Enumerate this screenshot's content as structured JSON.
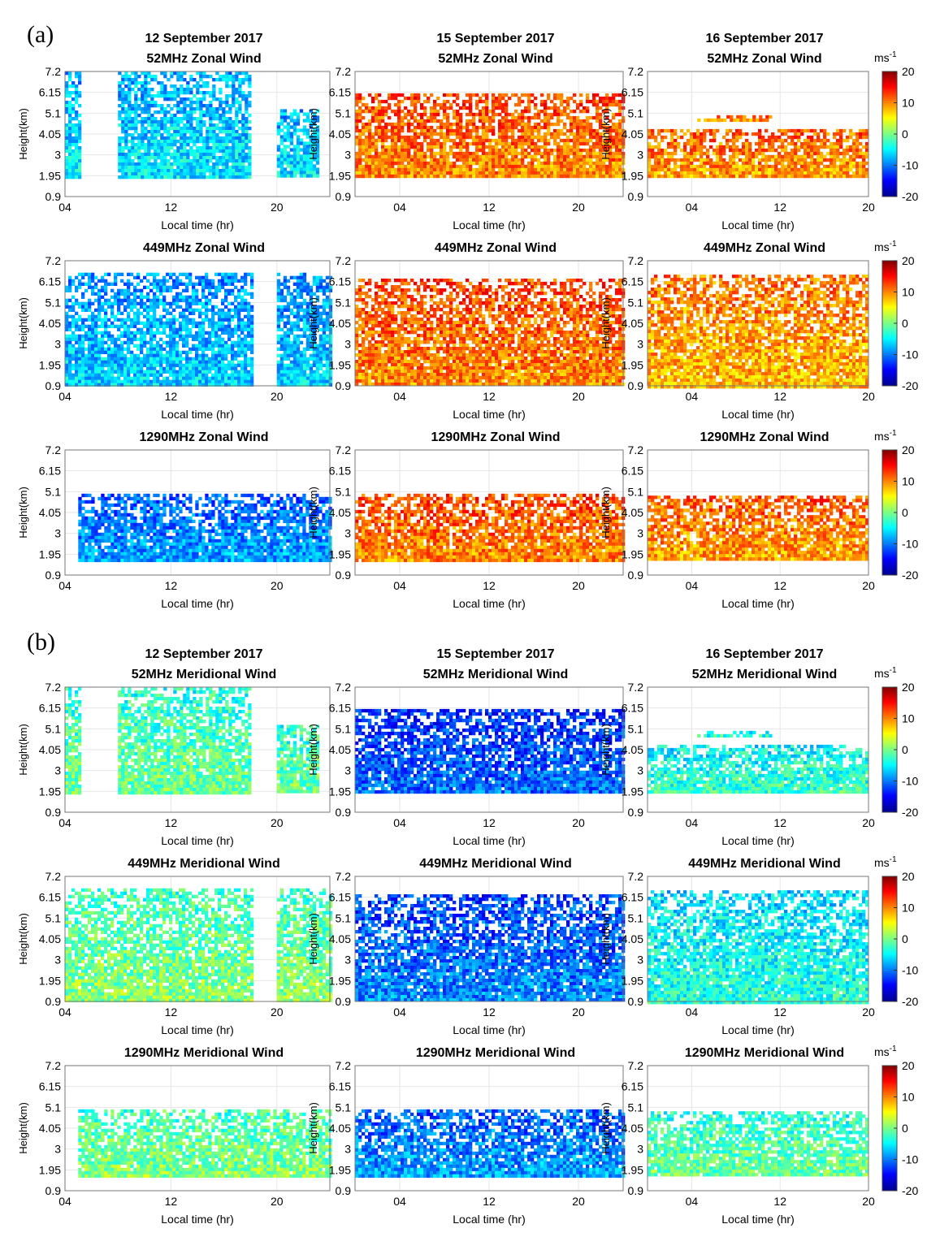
{
  "figure": {
    "sections": [
      {
        "label": "(a)",
        "component": "Zonal Wind",
        "dates": [
          "12 September 2017",
          "15 September 2017",
          "16 September 2017"
        ]
      },
      {
        "label": "(b)",
        "component": "Meridional Wind",
        "dates": [
          "12 September 2017",
          "15 September 2017",
          "16 September 2017"
        ]
      }
    ],
    "radars": [
      "52MHz",
      "449MHz",
      "1290MHz"
    ],
    "colorbar": {
      "unit_base": "ms",
      "unit_exp": "-1",
      "ticks": [
        "20",
        "10",
        "0",
        "-10",
        "-20"
      ],
      "range": [
        -20,
        20
      ]
    }
  },
  "chart_data": [
    {
      "type": "heatmap",
      "section": "(a)",
      "title": "52MHz Zonal Wind",
      "date": "12 September 2017",
      "xlabel": "Local time (hr)",
      "ylabel": "Height(km)",
      "xticks": [
        "04",
        "12",
        "20"
      ],
      "yticks": [
        "7.2",
        "6.15",
        "5.1",
        "4.05",
        "3",
        "1.95",
        "0.9"
      ],
      "ylim": [
        0.9,
        7.2
      ],
      "xlim": [
        4,
        24
      ],
      "value_range": [
        -20,
        20
      ],
      "approx_mean": -7,
      "coverage": [
        {
          "x": [
            4,
            5
          ],
          "y": [
            1.95,
            7.2
          ]
        },
        {
          "x": [
            8,
            18
          ],
          "y": [
            1.95,
            7.2
          ]
        },
        {
          "x": [
            20,
            23
          ],
          "y": [
            1.95,
            5.3
          ]
        }
      ]
    },
    {
      "type": "heatmap",
      "section": "(a)",
      "title": "52MHz Zonal Wind",
      "date": "15 September 2017",
      "xlabel": "Local time (hr)",
      "ylabel": "Height(km)",
      "xticks": [
        "04",
        "12",
        "20"
      ],
      "yticks": [
        "7.2",
        "6.15",
        "5.1",
        "4.05",
        "3",
        "1.95",
        "0.9"
      ],
      "ylim": [
        0.9,
        7.2
      ],
      "xlim": [
        0,
        24
      ],
      "value_range": [
        -20,
        20
      ],
      "approx_mean": 11,
      "coverage": [
        {
          "x": [
            0,
            24
          ],
          "y": [
            1.95,
            6.1
          ]
        }
      ]
    },
    {
      "type": "heatmap",
      "section": "(a)",
      "title": "52MHz Zonal Wind",
      "date": "16 September 2017",
      "xlabel": "Local time (hr)",
      "ylabel": "Height(km)",
      "xticks": [
        "04",
        "12",
        "20"
      ],
      "yticks": [
        "7.2",
        "6.15",
        "5.1",
        "4.05",
        "3",
        "1.95",
        "0.9"
      ],
      "ylim": [
        0.9,
        7.2
      ],
      "xlim": [
        0,
        20
      ],
      "value_range": [
        -20,
        20
      ],
      "approx_mean": 10,
      "coverage": [
        {
          "x": [
            0,
            20
          ],
          "y": [
            1.95,
            4.3
          ]
        },
        {
          "x": [
            4.5,
            11
          ],
          "y": [
            4.7,
            5.0
          ]
        }
      ]
    },
    {
      "type": "heatmap",
      "section": "(a)",
      "title": "449MHz Zonal Wind",
      "date": "12 September 2017",
      "xlabel": "Local time (hr)",
      "ylabel": "Height(km)",
      "xticks": [
        "04",
        "12",
        "20"
      ],
      "yticks": [
        "7.2",
        "6.15",
        "5.1",
        "4.05",
        "3",
        "1.95",
        "0.9"
      ],
      "ylim": [
        0.9,
        7.2
      ],
      "xlim": [
        4,
        24
      ],
      "value_range": [
        -20,
        20
      ],
      "approx_mean": -8,
      "coverage": [
        {
          "x": [
            4,
            18
          ],
          "y": [
            1.0,
            6.6
          ]
        },
        {
          "x": [
            20,
            24
          ],
          "y": [
            1.0,
            6.6
          ]
        }
      ]
    },
    {
      "type": "heatmap",
      "section": "(a)",
      "title": "449MHz Zonal Wind",
      "date": "15 September 2017",
      "xlabel": "Local time (hr)",
      "ylabel": "Height(km)",
      "xticks": [
        "04",
        "12",
        "20"
      ],
      "yticks": [
        "7.2",
        "6.15",
        "5.1",
        "4.05",
        "3",
        "1.95",
        "0.9"
      ],
      "ylim": [
        0.9,
        7.2
      ],
      "xlim": [
        0,
        24
      ],
      "value_range": [
        -20,
        20
      ],
      "approx_mean": 11,
      "coverage": [
        {
          "x": [
            0,
            24
          ],
          "y": [
            0.9,
            6.3
          ]
        }
      ]
    },
    {
      "type": "heatmap",
      "section": "(a)",
      "title": "449MHz Zonal Wind",
      "date": "16 September 2017",
      "xlabel": "Local time (hr)",
      "ylabel": "Height(km)",
      "xticks": [
        "04",
        "12",
        "20"
      ],
      "yticks": [
        "7.2",
        "6.15",
        "5.1",
        "4.05",
        "3",
        "1.95",
        "0.9"
      ],
      "ylim": [
        0.9,
        7.2
      ],
      "xlim": [
        0,
        20
      ],
      "value_range": [
        -20,
        20
      ],
      "approx_mean": 9,
      "coverage": [
        {
          "x": [
            0,
            20
          ],
          "y": [
            0.9,
            6.5
          ]
        }
      ]
    },
    {
      "type": "heatmap",
      "section": "(a)",
      "title": "1290MHz Zonal Wind",
      "date": "12 September 2017",
      "xlabel": "Local time (hr)",
      "ylabel": "Height(km)",
      "xticks": [
        "04",
        "12",
        "20"
      ],
      "yticks": [
        "7.2",
        "6.15",
        "5.1",
        "4.05",
        "3",
        "1.95",
        "0.9"
      ],
      "ylim": [
        0.9,
        7.2
      ],
      "xlim": [
        4,
        24
      ],
      "value_range": [
        -20,
        20
      ],
      "approx_mean": -10,
      "coverage": [
        {
          "x": [
            5,
            24
          ],
          "y": [
            1.7,
            5.0
          ]
        }
      ]
    },
    {
      "type": "heatmap",
      "section": "(a)",
      "title": "1290MHz Zonal Wind",
      "date": "15 September 2017",
      "xlabel": "Local time (hr)",
      "ylabel": "Height(km)",
      "xticks": [
        "04",
        "12",
        "20"
      ],
      "yticks": [
        "7.2",
        "6.15",
        "5.1",
        "4.05",
        "3",
        "1.95",
        "0.9"
      ],
      "ylim": [
        0.9,
        7.2
      ],
      "xlim": [
        0,
        24
      ],
      "value_range": [
        -20,
        20
      ],
      "approx_mean": 11,
      "coverage": [
        {
          "x": [
            0,
            24
          ],
          "y": [
            1.7,
            5.0
          ]
        }
      ]
    },
    {
      "type": "heatmap",
      "section": "(a)",
      "title": "1290MHz Zonal Wind",
      "date": "16 September 2017",
      "xlabel": "Local time (hr)",
      "ylabel": "Height(km)",
      "xticks": [
        "04",
        "12",
        "20"
      ],
      "yticks": [
        "7.2",
        "6.15",
        "5.1",
        "4.05",
        "3",
        "1.95",
        "0.9"
      ],
      "ylim": [
        0.9,
        7.2
      ],
      "xlim": [
        0,
        20
      ],
      "value_range": [
        -20,
        20
      ],
      "approx_mean": 10,
      "coverage": [
        {
          "x": [
            0,
            20
          ],
          "y": [
            1.7,
            4.9
          ]
        }
      ]
    },
    {
      "type": "heatmap",
      "section": "(b)",
      "title": "52MHz Meridional Wind",
      "date": "12 September 2017",
      "xlabel": "Local time (hr)",
      "ylabel": "Height(km)",
      "xticks": [
        "04",
        "12",
        "20"
      ],
      "yticks": [
        "7.2",
        "6.15",
        "5.1",
        "4.05",
        "3",
        "1.95",
        "0.9"
      ],
      "ylim": [
        0.9,
        7.2
      ],
      "xlim": [
        4,
        24
      ],
      "value_range": [
        -20,
        20
      ],
      "approx_mean": -2,
      "coverage": [
        {
          "x": [
            4,
            5
          ],
          "y": [
            1.95,
            7.2
          ]
        },
        {
          "x": [
            8,
            18
          ],
          "y": [
            1.95,
            7.2
          ]
        },
        {
          "x": [
            20,
            23
          ],
          "y": [
            1.95,
            5.3
          ]
        }
      ]
    },
    {
      "type": "heatmap",
      "section": "(b)",
      "title": "52MHz Meridional Wind",
      "date": "15 September 2017",
      "xlabel": "Local time (hr)",
      "ylabel": "Height(km)",
      "xticks": [
        "04",
        "12",
        "20"
      ],
      "yticks": [
        "7.2",
        "6.15",
        "5.1",
        "4.05",
        "3",
        "1.95",
        "0.9"
      ],
      "ylim": [
        0.9,
        7.2
      ],
      "xlim": [
        0,
        24
      ],
      "value_range": [
        -20,
        20
      ],
      "approx_mean": -12,
      "coverage": [
        {
          "x": [
            0,
            24
          ],
          "y": [
            1.95,
            6.1
          ]
        }
      ]
    },
    {
      "type": "heatmap",
      "section": "(b)",
      "title": "52MHz Meridional Wind",
      "date": "16 September 2017",
      "xlabel": "Local time (hr)",
      "ylabel": "Height(km)",
      "xticks": [
        "04",
        "12",
        "20"
      ],
      "yticks": [
        "7.2",
        "6.15",
        "5.1",
        "4.05",
        "3",
        "1.95",
        "0.9"
      ],
      "ylim": [
        0.9,
        7.2
      ],
      "xlim": [
        0,
        20
      ],
      "value_range": [
        -20,
        20
      ],
      "approx_mean": -4,
      "coverage": [
        {
          "x": [
            0,
            20
          ],
          "y": [
            1.95,
            4.3
          ]
        },
        {
          "x": [
            4.5,
            11
          ],
          "y": [
            4.7,
            5.0
          ]
        }
      ]
    },
    {
      "type": "heatmap",
      "section": "(b)",
      "title": "449MHz Meridional Wind",
      "date": "12 September 2017",
      "xlabel": "Local time (hr)",
      "ylabel": "Height(km)",
      "xticks": [
        "04",
        "12",
        "20"
      ],
      "yticks": [
        "7.2",
        "6.15",
        "5.1",
        "4.05",
        "3",
        "1.95",
        "0.9"
      ],
      "ylim": [
        0.9,
        7.2
      ],
      "xlim": [
        4,
        24
      ],
      "value_range": [
        -20,
        20
      ],
      "approx_mean": -1,
      "coverage": [
        {
          "x": [
            4,
            18
          ],
          "y": [
            1.0,
            6.6
          ]
        },
        {
          "x": [
            20,
            24
          ],
          "y": [
            1.0,
            6.6
          ]
        }
      ]
    },
    {
      "type": "heatmap",
      "section": "(b)",
      "title": "449MHz Meridional Wind",
      "date": "15 September 2017",
      "xlabel": "Local time (hr)",
      "ylabel": "Height(km)",
      "xticks": [
        "04",
        "12",
        "20"
      ],
      "yticks": [
        "7.2",
        "6.15",
        "5.1",
        "4.05",
        "3",
        "1.95",
        "0.9"
      ],
      "ylim": [
        0.9,
        7.2
      ],
      "xlim": [
        0,
        24
      ],
      "value_range": [
        -20,
        20
      ],
      "approx_mean": -11,
      "coverage": [
        {
          "x": [
            0,
            24
          ],
          "y": [
            0.9,
            6.3
          ]
        }
      ]
    },
    {
      "type": "heatmap",
      "section": "(b)",
      "title": "449MHz Meridional Wind",
      "date": "16 September 2017",
      "xlabel": "Local time (hr)",
      "ylabel": "Height(km)",
      "xticks": [
        "04",
        "12",
        "20"
      ],
      "yticks": [
        "7.2",
        "6.15",
        "5.1",
        "4.05",
        "3",
        "1.95",
        "0.9"
      ],
      "ylim": [
        0.9,
        7.2
      ],
      "xlim": [
        0,
        20
      ],
      "value_range": [
        -20,
        20
      ],
      "approx_mean": -5,
      "coverage": [
        {
          "x": [
            0,
            20
          ],
          "y": [
            0.9,
            6.5
          ]
        }
      ]
    },
    {
      "type": "heatmap",
      "section": "(b)",
      "title": "1290MHz Meridional Wind",
      "date": "12 September 2017",
      "xlabel": "Local time (hr)",
      "ylabel": "Height(km)",
      "xticks": [
        "04",
        "12",
        "20"
      ],
      "yticks": [
        "7.2",
        "6.15",
        "5.1",
        "4.05",
        "3",
        "1.95",
        "0.9"
      ],
      "ylim": [
        0.9,
        7.2
      ],
      "xlim": [
        4,
        24
      ],
      "value_range": [
        -20,
        20
      ],
      "approx_mean": -1,
      "coverage": [
        {
          "x": [
            5,
            24
          ],
          "y": [
            1.7,
            5.0
          ]
        }
      ]
    },
    {
      "type": "heatmap",
      "section": "(b)",
      "title": "1290MHz Meridional Wind",
      "date": "15 September 2017",
      "xlabel": "Local time (hr)",
      "ylabel": "Height(km)",
      "xticks": [
        "04",
        "12",
        "20"
      ],
      "yticks": [
        "7.2",
        "6.15",
        "5.1",
        "4.05",
        "3",
        "1.95",
        "0.9"
      ],
      "ylim": [
        0.9,
        7.2
      ],
      "xlim": [
        0,
        24
      ],
      "value_range": [
        -20,
        20
      ],
      "approx_mean": -10,
      "coverage": [
        {
          "x": [
            0,
            24
          ],
          "y": [
            1.7,
            5.0
          ]
        }
      ]
    },
    {
      "type": "heatmap",
      "section": "(b)",
      "title": "1290MHz Meridional Wind",
      "date": "16 September 2017",
      "xlabel": "Local time (hr)",
      "ylabel": "Height(km)",
      "xticks": [
        "04",
        "12",
        "20"
      ],
      "yticks": [
        "7.2",
        "6.15",
        "5.1",
        "4.05",
        "3",
        "1.95",
        "0.9"
      ],
      "ylim": [
        0.9,
        7.2
      ],
      "xlim": [
        0,
        20
      ],
      "value_range": [
        -20,
        20
      ],
      "approx_mean": -2,
      "coverage": [
        {
          "x": [
            0,
            20
          ],
          "y": [
            1.7,
            4.9
          ]
        }
      ]
    }
  ]
}
